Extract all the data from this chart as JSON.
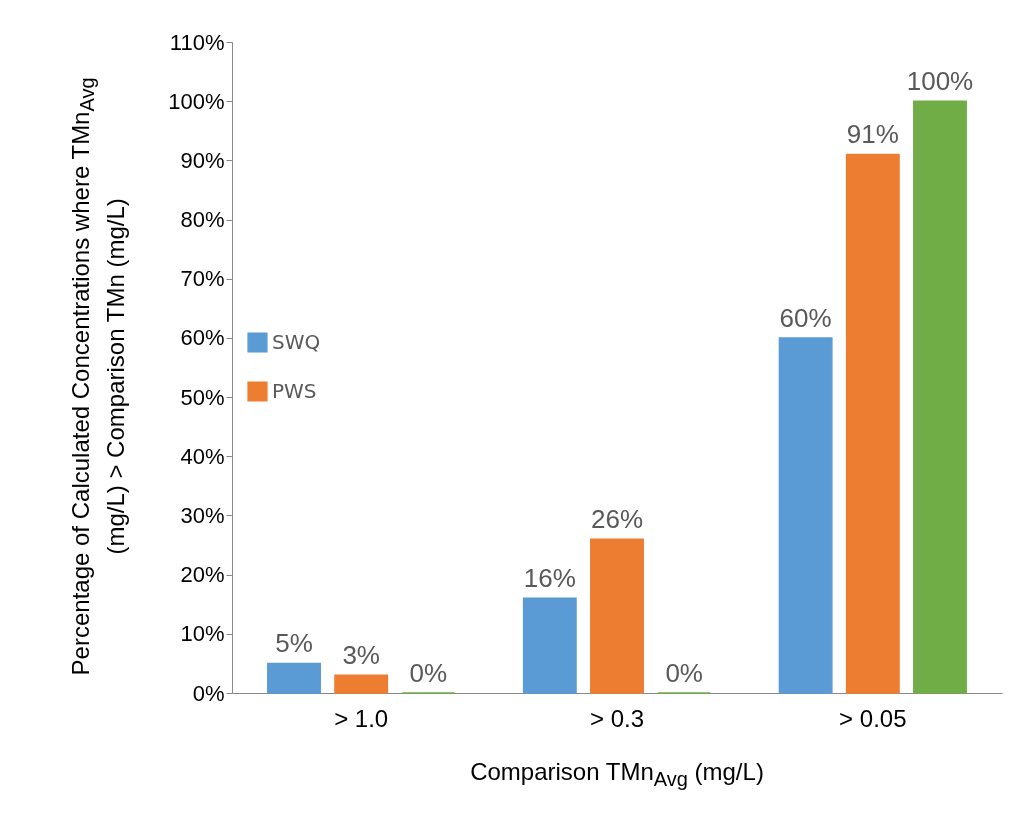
{
  "chart_data": {
    "type": "bar",
    "xlabel": "Comparison TMn$_{Avg}$ (mg/L)",
    "ylabel": "Percentage of Calculated Concentrations  where TMn$_{Avg}$ (mg/L) > Comparison  TMn (mg/L)",
    "categories": [
      "> 1.0",
      "> 0.3",
      "> 0.05"
    ],
    "series": [
      {
        "name": "SWQ",
        "color": "#5b9bd5",
        "values": [
          5,
          16,
          60
        ],
        "value_labels": [
          "5%",
          "16%",
          "60%"
        ]
      },
      {
        "name": "PWS",
        "color": "#ed7d31",
        "values": [
          3,
          26,
          91
        ],
        "value_labels": [
          "3%",
          "26%",
          "91%"
        ]
      },
      {
        "color": "#70ad47",
        "values": [
          0,
          0,
          100
        ],
        "value_labels": [
          "0%",
          "0%",
          "100%"
        ]
      }
    ],
    "ylim": [
      0,
      110
    ],
    "yticks": [
      {
        "value": 0,
        "label": "0%"
      },
      {
        "value": 10,
        "label": "10%"
      },
      {
        "value": 20,
        "label": "20%"
      },
      {
        "value": 30,
        "label": "30%"
      },
      {
        "value": 40,
        "label": "40%"
      },
      {
        "value": 50,
        "label": "50%"
      },
      {
        "value": 60,
        "label": "60%"
      },
      {
        "value": 70,
        "label": "70%"
      },
      {
        "value": 80,
        "label": "80%"
      },
      {
        "value": 90,
        "label": "90%"
      },
      {
        "value": 100,
        "label": "100%"
      },
      {
        "value": 110,
        "label": "110%"
      }
    ],
    "legend": "left",
    "grid": false
  }
}
